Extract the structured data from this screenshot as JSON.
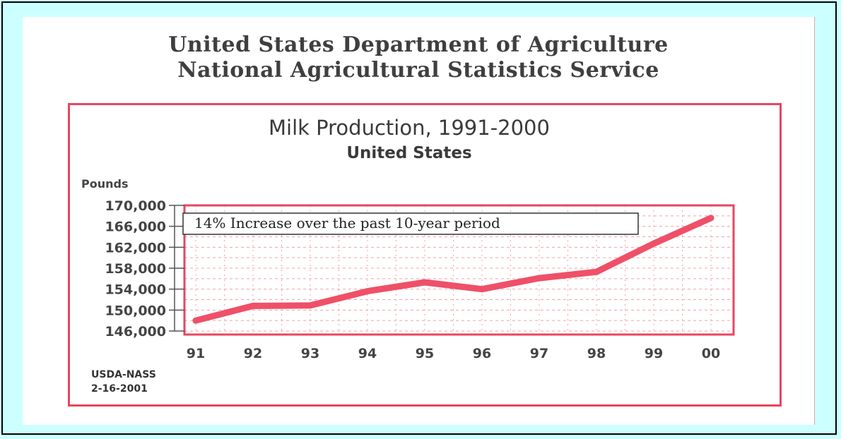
{
  "header": {
    "line1": "United States Department of Agriculture",
    "line2": "National Agricultural Statistics Service"
  },
  "colors": {
    "background": "#ccffff",
    "frame": "#e8455e",
    "line": "#ef5068",
    "grid": "#f4a0a8",
    "text": "#3f3f3f"
  },
  "chart_data": {
    "type": "line",
    "title": "Milk Production, 1991-2000",
    "subtitle": "United States",
    "ylabel": "Pounds",
    "xlabel": "",
    "annotation": "14% Increase over the past 10-year period",
    "categories": [
      "91",
      "92",
      "93",
      "94",
      "95",
      "96",
      "97",
      "98",
      "99",
      "00"
    ],
    "values": [
      148000,
      150800,
      150900,
      153600,
      155300,
      154000,
      156100,
      157300,
      162700,
      167600
    ],
    "y_ticks": [
      "146,000",
      "150,000",
      "154,000",
      "158,000",
      "162,000",
      "166,000",
      "170,000"
    ],
    "ylim": [
      146000,
      170000
    ],
    "grid": true,
    "source": [
      "USDA-NASS",
      "2-16-2001"
    ]
  }
}
